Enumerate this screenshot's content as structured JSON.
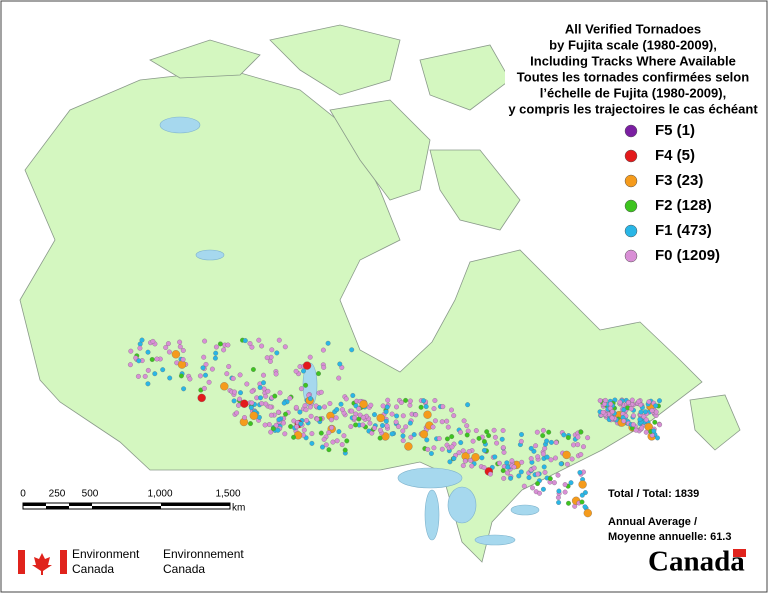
{
  "title": [
    "All Verified Tornadoes",
    "by Fujita scale (1980-2009),",
    "Including Tracks Where Available",
    "Toutes les tornades confirmées selon",
    "l’échelle de Fujita (1980-2009),",
    "y compris les trajectoires le cas échéant"
  ],
  "legend": [
    {
      "label": "F5 (1)",
      "color": "#7b1fa2"
    },
    {
      "label": "F4 (5)",
      "color": "#e31a1c"
    },
    {
      "label": "F3 (23)",
      "color": "#f59b1c"
    },
    {
      "label": "F2 (128)",
      "color": "#3dc41f"
    },
    {
      "label": "F1 (473)",
      "color": "#29b6e6"
    },
    {
      "label": "F0 (1209)",
      "color": "#d98fd6"
    }
  ],
  "scale_bar": {
    "ticks": [
      "0",
      "250",
      "500",
      "1,000",
      "1,500"
    ],
    "unit": "km"
  },
  "total": "Total / Total: 1839",
  "annual_average": [
    "Annual Average /",
    "Moyenne annuelle: 61.3"
  ],
  "agency": {
    "en": [
      "Environment",
      "Canada"
    ],
    "fr": [
      "Environnement",
      "Canada"
    ]
  },
  "wordmark": "Canada"
}
